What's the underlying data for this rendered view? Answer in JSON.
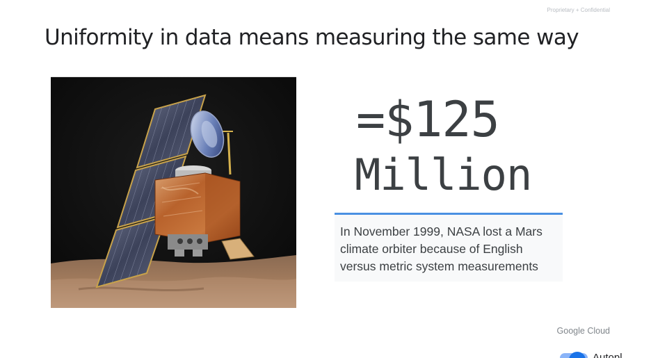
{
  "header": {
    "confidential": "Proprietary + Confidential",
    "title": "Uniformity in data means measuring the same way"
  },
  "stat": {
    "amount": "=$125",
    "unit": "Million"
  },
  "callout": {
    "text": "In November 1999, NASA lost a Mars climate orbiter because of English versus metric system measurements"
  },
  "footer": {
    "brand": "Google Cloud",
    "toggle_label": "Autopl",
    "toggle_state": "on"
  },
  "colors": {
    "accent": "#4a90e2",
    "callout_bg": "#f8f9fa",
    "text_dark": "#3c4043",
    "toggle": "#1a73e8"
  },
  "image": {
    "subject": "mars-climate-orbiter-illustration"
  }
}
